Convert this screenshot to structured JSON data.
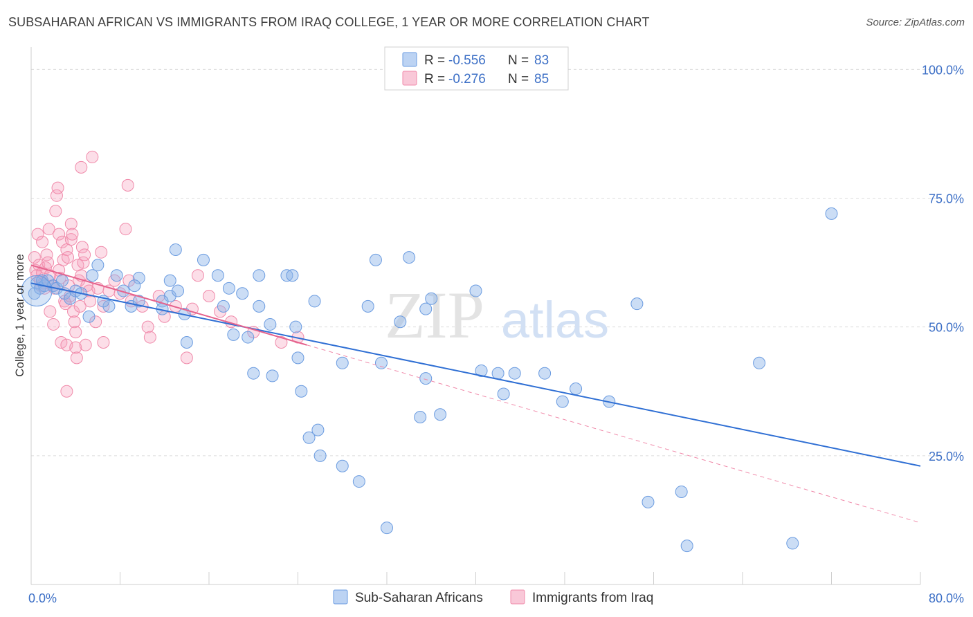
{
  "title": "SUBSAHARAN AFRICAN VS IMMIGRANTS FROM IRAQ COLLEGE, 1 YEAR OR MORE CORRELATION CHART",
  "source": "Source: ZipAtlas.com",
  "watermark": {
    "zip": "ZIP",
    "atlas": "atlas"
  },
  "legend_top": [
    {
      "r_label": "R =",
      "r_value": "-0.556",
      "n_label": "N =",
      "n_value": "83",
      "color": "#6a9be0"
    },
    {
      "r_label": "R =",
      "r_value": "-0.276",
      "n_label": "N =",
      "n_value": "85",
      "color": "#f08aaa"
    }
  ],
  "legend_bottom": [
    {
      "label": "Sub-Saharan Africans",
      "color": "#6a9be0"
    },
    {
      "label": "Immigrants from Iraq",
      "color": "#f08aaa"
    }
  ],
  "chart_data": {
    "type": "scatter",
    "title": "SUBSAHARAN AFRICAN VS IMMIGRANTS FROM IRAQ COLLEGE, 1 YEAR OR MORE CORRELATION CHART",
    "ylabel": "College, 1 year or more",
    "xlabel": "",
    "xlim": [
      0,
      80
    ],
    "ylim": [
      0,
      103
    ],
    "x_tick_labels": [
      {
        "value": 0,
        "label": "0.0%"
      },
      {
        "value": 80,
        "label": "80.0%"
      }
    ],
    "y_tick_labels": [
      {
        "value": 100,
        "label": "100.0%"
      },
      {
        "value": 75,
        "label": "75.0%"
      },
      {
        "value": 50,
        "label": "50.0%"
      },
      {
        "value": 25,
        "label": "25.0%"
      }
    ],
    "series": [
      {
        "name": "Sub-Saharan Africans",
        "color": "#6a9be0",
        "trend": {
          "x": [
            0,
            80
          ],
          "y": [
            58.5,
            23.0
          ],
          "style": "solid"
        },
        "points": [
          [
            0.3,
            56.5
          ],
          [
            0.5,
            58.5
          ],
          [
            0.8,
            57.5
          ],
          [
            1.0,
            59.0
          ],
          [
            1.2,
            58.0
          ],
          [
            1.5,
            59.0
          ],
          [
            2.0,
            58.0
          ],
          [
            2.3,
            57.5
          ],
          [
            2.8,
            59.0
          ],
          [
            3.0,
            56.5
          ],
          [
            3.5,
            55.5
          ],
          [
            4.0,
            57.0
          ],
          [
            4.5,
            56.5
          ],
          [
            5.5,
            60.0
          ],
          [
            6.0,
            62.0
          ],
          [
            5.2,
            52.0
          ],
          [
            7.7,
            60.0
          ],
          [
            7.0,
            54.0
          ],
          [
            8.3,
            57.0
          ],
          [
            9.0,
            54.0
          ],
          [
            9.7,
            59.5
          ],
          [
            9.3,
            58.0
          ],
          [
            9.7,
            55.0
          ],
          [
            12.5,
            59.0
          ],
          [
            12.5,
            56.0
          ],
          [
            13.2,
            57.0
          ],
          [
            13.8,
            52.5
          ],
          [
            14.0,
            47.0
          ],
          [
            15.5,
            63.0
          ],
          [
            16.8,
            60.0
          ],
          [
            17.8,
            57.5
          ],
          [
            17.3,
            54.0
          ],
          [
            18.2,
            48.5
          ],
          [
            19.0,
            56.5
          ],
          [
            20.5,
            60.0
          ],
          [
            20.5,
            54.0
          ],
          [
            13.0,
            65.0
          ],
          [
            11.8,
            55.0
          ],
          [
            11.8,
            53.5
          ],
          [
            6.5,
            55.0
          ],
          [
            23.0,
            60.0
          ],
          [
            23.5,
            60.0
          ],
          [
            21.5,
            50.5
          ],
          [
            23.8,
            50.0
          ],
          [
            19.5,
            48.0
          ],
          [
            20.0,
            41.0
          ],
          [
            21.7,
            40.5
          ],
          [
            24.0,
            44.0
          ],
          [
            24.3,
            37.5
          ],
          [
            25.5,
            55.0
          ],
          [
            25.0,
            28.5
          ],
          [
            25.8,
            30.0
          ],
          [
            26.0,
            25.0
          ],
          [
            28.0,
            43.0
          ],
          [
            28.0,
            23.0
          ],
          [
            29.5,
            20.0
          ],
          [
            30.3,
            54.0
          ],
          [
            31.0,
            63.0
          ],
          [
            31.5,
            43.0
          ],
          [
            32.0,
            11.0
          ],
          [
            33.2,
            51.0
          ],
          [
            34.0,
            63.5
          ],
          [
            35.5,
            40.0
          ],
          [
            35.0,
            32.5
          ],
          [
            36.0,
            55.5
          ],
          [
            35.5,
            53.5
          ],
          [
            36.8,
            33.0
          ],
          [
            40.0,
            57.0
          ],
          [
            40.5,
            41.5
          ],
          [
            42.0,
            41.0
          ],
          [
            42.5,
            37.0
          ],
          [
            43.5,
            41.0
          ],
          [
            46.2,
            41.0
          ],
          [
            47.8,
            35.5
          ],
          [
            49.0,
            38.0
          ],
          [
            52.0,
            35.5
          ],
          [
            54.5,
            54.5
          ],
          [
            55.5,
            16.0
          ],
          [
            58.5,
            18.0
          ],
          [
            59.0,
            7.5
          ],
          [
            65.5,
            43.0
          ],
          [
            68.5,
            8.0
          ],
          [
            72.0,
            72.0
          ]
        ]
      },
      {
        "name": "Immigrants from Iraq",
        "color": "#f08aaa",
        "trend": {
          "x": [
            0,
            80
          ],
          "y": [
            62.0,
            12.0
          ],
          "style": "solid-then-dashed",
          "solid_until_x": 24.8
        },
        "points": [
          [
            0.3,
            63.5
          ],
          [
            0.4,
            61.0
          ],
          [
            0.5,
            60.0
          ],
          [
            0.6,
            68.0
          ],
          [
            0.7,
            62.0
          ],
          [
            0.8,
            59.0
          ],
          [
            0.9,
            58.0
          ],
          [
            1.0,
            60.5
          ],
          [
            1.0,
            66.5
          ],
          [
            1.1,
            58.5
          ],
          [
            1.2,
            57.5
          ],
          [
            1.3,
            61.5
          ],
          [
            1.4,
            64.0
          ],
          [
            1.5,
            62.5
          ],
          [
            1.6,
            69.0
          ],
          [
            1.7,
            60.0
          ],
          [
            1.7,
            53.0
          ],
          [
            1.9,
            58.0
          ],
          [
            2.0,
            50.5
          ],
          [
            2.1,
            57.5
          ],
          [
            2.2,
            72.5
          ],
          [
            2.3,
            75.5
          ],
          [
            2.4,
            77.0
          ],
          [
            2.5,
            68.0
          ],
          [
            2.5,
            61.0
          ],
          [
            2.6,
            59.5
          ],
          [
            2.7,
            47.0
          ],
          [
            2.8,
            66.5
          ],
          [
            2.9,
            63.0
          ],
          [
            3.0,
            55.0
          ],
          [
            3.1,
            54.5
          ],
          [
            3.2,
            65.0
          ],
          [
            3.2,
            46.5
          ],
          [
            3.3,
            63.5
          ],
          [
            3.4,
            58.0
          ],
          [
            3.5,
            56.0
          ],
          [
            3.6,
            70.0
          ],
          [
            3.6,
            67.0
          ],
          [
            3.7,
            68.0
          ],
          [
            3.8,
            53.0
          ],
          [
            3.9,
            51.0
          ],
          [
            4.0,
            49.0
          ],
          [
            4.0,
            46.0
          ],
          [
            4.1,
            44.0
          ],
          [
            4.2,
            62.0
          ],
          [
            4.3,
            59.0
          ],
          [
            4.4,
            54.0
          ],
          [
            4.5,
            60.0
          ],
          [
            4.6,
            65.5
          ],
          [
            4.7,
            62.5
          ],
          [
            4.8,
            64.0
          ],
          [
            4.9,
            46.5
          ],
          [
            5.0,
            58.0
          ],
          [
            5.2,
            57.0
          ],
          [
            5.3,
            55.0
          ],
          [
            3.2,
            37.5
          ],
          [
            4.5,
            81.0
          ],
          [
            5.5,
            83.0
          ],
          [
            5.8,
            51.0
          ],
          [
            6.3,
            64.5
          ],
          [
            6.5,
            47.0
          ],
          [
            6.0,
            57.5
          ],
          [
            6.5,
            54.0
          ],
          [
            7.0,
            57.0
          ],
          [
            7.5,
            59.0
          ],
          [
            8.0,
            56.5
          ],
          [
            8.5,
            69.0
          ],
          [
            8.7,
            77.5
          ],
          [
            8.8,
            59.0
          ],
          [
            9.0,
            55.0
          ],
          [
            10.0,
            54.0
          ],
          [
            10.5,
            50.0
          ],
          [
            10.7,
            48.0
          ],
          [
            11.5,
            56.0
          ],
          [
            12.0,
            52.0
          ],
          [
            13.0,
            54.0
          ],
          [
            14.5,
            53.5
          ],
          [
            14.0,
            44.0
          ],
          [
            15.0,
            60.0
          ],
          [
            16.0,
            56.0
          ],
          [
            17.0,
            53.0
          ],
          [
            18.0,
            51.0
          ],
          [
            20.0,
            49.0
          ],
          [
            22.5,
            47.0
          ],
          [
            24.0,
            48.0
          ]
        ]
      }
    ]
  }
}
